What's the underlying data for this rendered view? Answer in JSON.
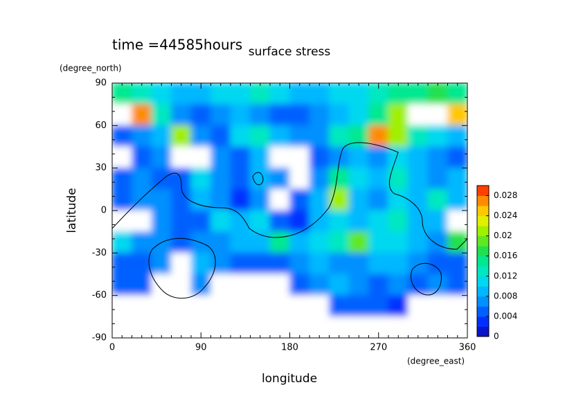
{
  "chart_data": {
    "type": "contour",
    "annotation": "time =44585hours",
    "title": "surface stress",
    "xlabel": "longitude",
    "xunit": "(degree_east)",
    "ylabel": "latitude",
    "yunit": "(degree_north)",
    "xlim": [
      0,
      360
    ],
    "xticks": [
      0,
      90,
      180,
      270,
      360
    ],
    "ylim": [
      -90,
      90
    ],
    "yticks": [
      -90,
      -60,
      -30,
      0,
      30,
      60,
      90
    ],
    "zlim": [
      0,
      0.03
    ],
    "zticks": [
      0,
      0.004,
      0.008,
      0.012,
      0.016,
      0.02,
      0.024,
      0.028
    ],
    "colormap": [
      "#0a14c8",
      "#0030ff",
      "#0060ff",
      "#0090ff",
      "#00b8ff",
      "#00d8f0",
      "#00e8c0",
      "#00e890",
      "#20e050",
      "#60e820",
      "#a0f000",
      "#e0f000",
      "#ffc800",
      "#ff8c00",
      "#ff4000"
    ],
    "x": [
      10,
      30,
      50,
      70,
      90,
      110,
      130,
      150,
      170,
      190,
      210,
      230,
      250,
      270,
      290,
      310,
      330,
      350
    ],
    "y": [
      82.5,
      67.5,
      52.5,
      37.5,
      22.5,
      7.5,
      -7.5,
      -22.5,
      -37.5,
      -52.5,
      -67.5,
      -82.5
    ],
    "z": [
      [
        0.014,
        0.012,
        0.01,
        0.008,
        0.008,
        0.01,
        0.01,
        0.012,
        0.01,
        0.008,
        0.008,
        0.01,
        0.01,
        0.012,
        0.014,
        0.014,
        0.016,
        0.014
      ],
      [
        0.032,
        0.026,
        0.012,
        0.006,
        0.004,
        0.006,
        0.008,
        0.006,
        0.004,
        0.004,
        0.006,
        0.008,
        0.01,
        0.014,
        0.02,
        0.032,
        0.032,
        0.024
      ],
      [
        0.004,
        0.006,
        0.008,
        0.02,
        0.006,
        0.004,
        0.01,
        0.012,
        0.008,
        0.006,
        0.006,
        0.012,
        0.014,
        0.026,
        0.02,
        0.012,
        0.01,
        0.008
      ],
      [
        0,
        0.004,
        0.006,
        0,
        0,
        0.006,
        0.004,
        0.008,
        0,
        0,
        0.004,
        0.006,
        0.008,
        0.006,
        0.01,
        0.008,
        0.006,
        0.004
      ],
      [
        0.004,
        0.006,
        0.004,
        0.004,
        0.01,
        0.006,
        0.004,
        0.008,
        0.006,
        0,
        0.006,
        0.014,
        0.01,
        0.008,
        0.012,
        0.008,
        0.006,
        0.008
      ],
      [
        0.004,
        0.006,
        0.006,
        0.004,
        0.008,
        0.006,
        0.002,
        0.006,
        0,
        0.004,
        0.008,
        0.02,
        0.008,
        0.006,
        0.01,
        0.008,
        0.012,
        0.008
      ],
      [
        0,
        0,
        0.006,
        0.004,
        0.004,
        0.01,
        0.008,
        0.01,
        0.004,
        0.002,
        0.008,
        0.01,
        0.008,
        0.01,
        0.012,
        0.008,
        0.008,
        0
      ],
      [
        0.01,
        0.006,
        0.006,
        0.004,
        0.006,
        0.006,
        0.008,
        0.008,
        0.014,
        0.008,
        0.01,
        0.012,
        0.018,
        0.01,
        0.01,
        0.008,
        0.006,
        0.016
      ],
      [
        0.004,
        0.004,
        0.006,
        0,
        0.008,
        0.006,
        0.004,
        0.004,
        0.004,
        0.006,
        0.008,
        0.006,
        0.006,
        0.008,
        0.008,
        0.006,
        0.004,
        0.004
      ],
      [
        0.004,
        0.004,
        0,
        0,
        0.006,
        0,
        0,
        0,
        0,
        0.004,
        0.006,
        0.008,
        0.006,
        0.004,
        0.006,
        0.004,
        0.006,
        0.004
      ],
      [
        0,
        0,
        0,
        0,
        0,
        0,
        0,
        0,
        0,
        0,
        0,
        0.004,
        0.004,
        0.004,
        0.002,
        0,
        0,
        0
      ],
      [
        0,
        0,
        0,
        0,
        0,
        0,
        0,
        0,
        0,
        0,
        0,
        0,
        0,
        0,
        0,
        0,
        0,
        0
      ]
    ]
  }
}
